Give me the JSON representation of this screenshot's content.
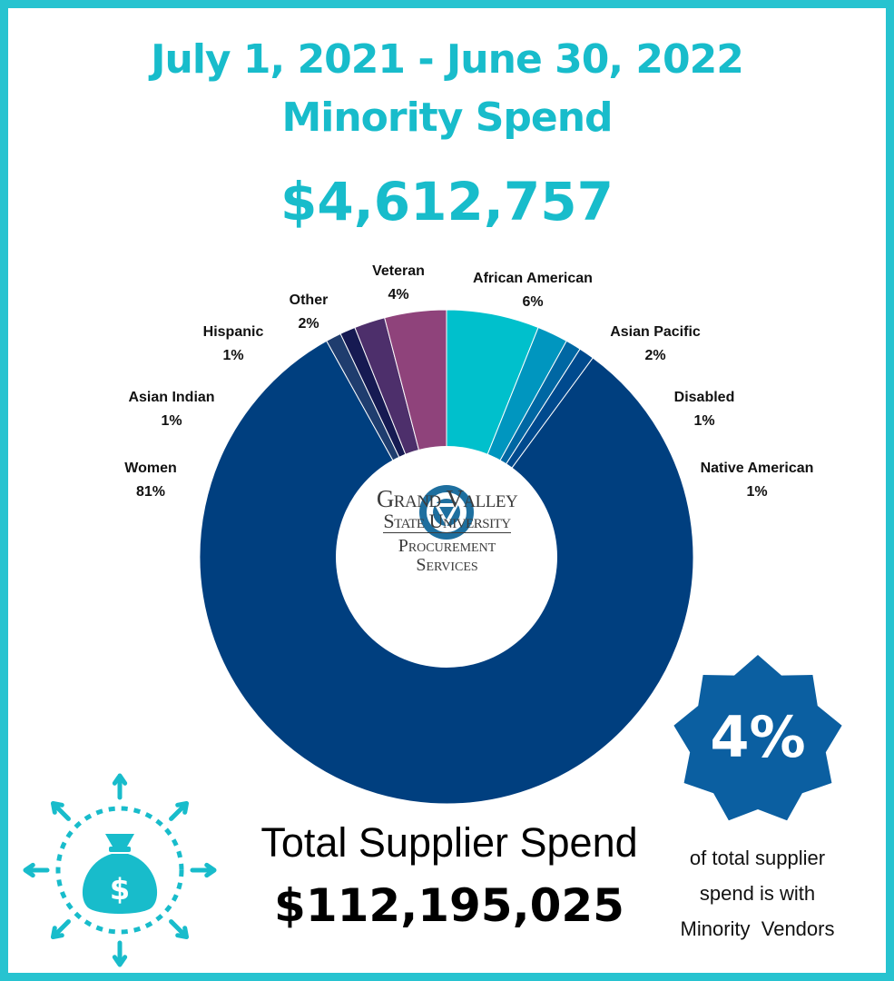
{
  "header": {
    "title_line1": "July 1, 2021 - June 30, 2022",
    "title_line2": "Minority Spend",
    "minority_total": "$4,612,757"
  },
  "chart_data": {
    "type": "pie",
    "donut": true,
    "title": "",
    "categories": [
      "African American",
      "Asian Pacific",
      "Disabled",
      "Native American",
      "Women",
      "Asian Indian",
      "Hispanic",
      "Other",
      "Veteran"
    ],
    "values": [
      6,
      2,
      1,
      1,
      81,
      1,
      1,
      2,
      4
    ],
    "labels": [
      "6%",
      "2%",
      "1%",
      "1%",
      "81%",
      "1%",
      "1%",
      "2%",
      "4%"
    ],
    "colors": [
      "#00c0cc",
      "#0096bf",
      "#0067a3",
      "#004a8e",
      "#003f7f",
      "#1f3d6e",
      "#161a52",
      "#4d2f6b",
      "#8f437b"
    ],
    "legend": "none"
  },
  "logo": {
    "line1": "Grand Valley",
    "line2": "State University",
    "line3": "Procurement",
    "line4": "Services"
  },
  "badge": {
    "value": "4%",
    "caption_line1": "of total supplier",
    "caption_line2": "spend is with",
    "caption_line3": "Minority  Vendors"
  },
  "total": {
    "label": "Total Supplier Spend",
    "value": "$112,195,025"
  },
  "icons": {
    "money": "money-bag-icon",
    "logo": "gvsu-logo-icon"
  },
  "theme": {
    "accent": "#18bccb",
    "border": "#27c3d0",
    "badge": "#0b5fa1"
  }
}
